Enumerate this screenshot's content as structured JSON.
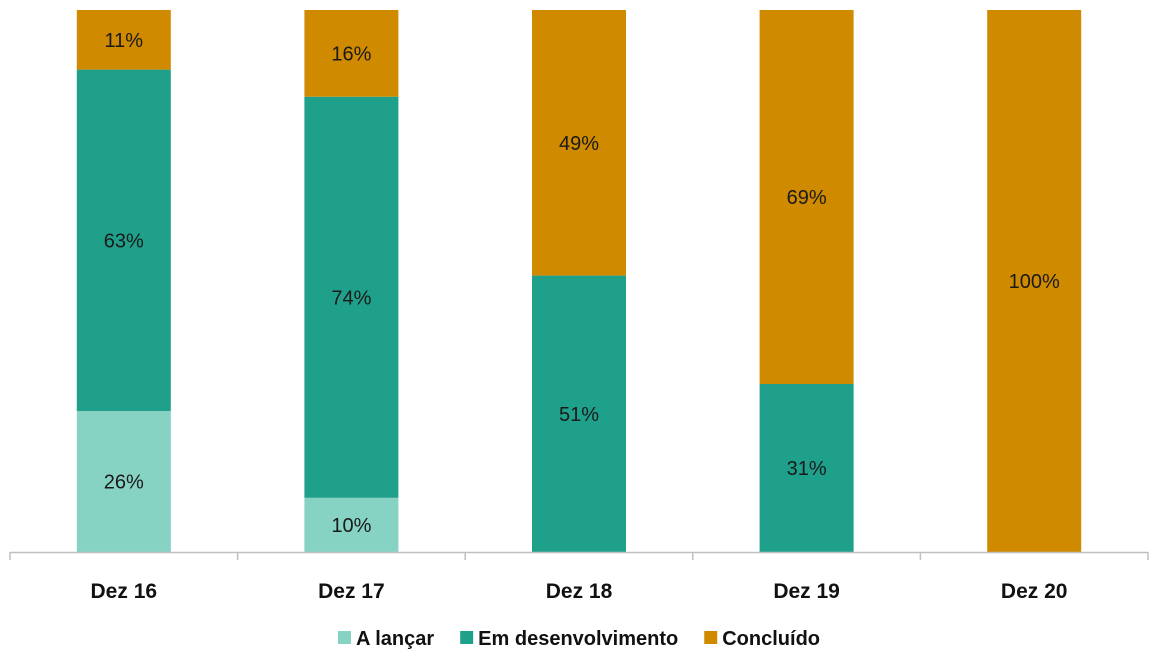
{
  "chart_data": {
    "type": "bar",
    "stacked": true,
    "title": "",
    "xlabel": "",
    "ylabel": "",
    "ylim": [
      0,
      100
    ],
    "grid": false,
    "legend": "bottom",
    "categories": [
      "Dez 16",
      "Dez 17",
      "Dez 18",
      "Dez 19",
      "Dez 20"
    ],
    "series": [
      {
        "name": "A lançar",
        "color": "#86d2c3",
        "values": [
          26,
          10,
          0,
          0,
          0
        ],
        "labels": [
          "26%",
          "10%",
          "",
          "",
          ""
        ]
      },
      {
        "name": "Em desenvolvimento",
        "color": "#1fa08b",
        "values": [
          63,
          74,
          51,
          31,
          0
        ],
        "labels": [
          "63%",
          "74%",
          "51%",
          "31%",
          ""
        ]
      },
      {
        "name": "Concluído",
        "color": "#d08a00",
        "values": [
          11,
          16,
          49,
          69,
          100
        ],
        "labels": [
          "11%",
          "16%",
          "49%",
          "69%",
          "100%"
        ]
      }
    ]
  }
}
